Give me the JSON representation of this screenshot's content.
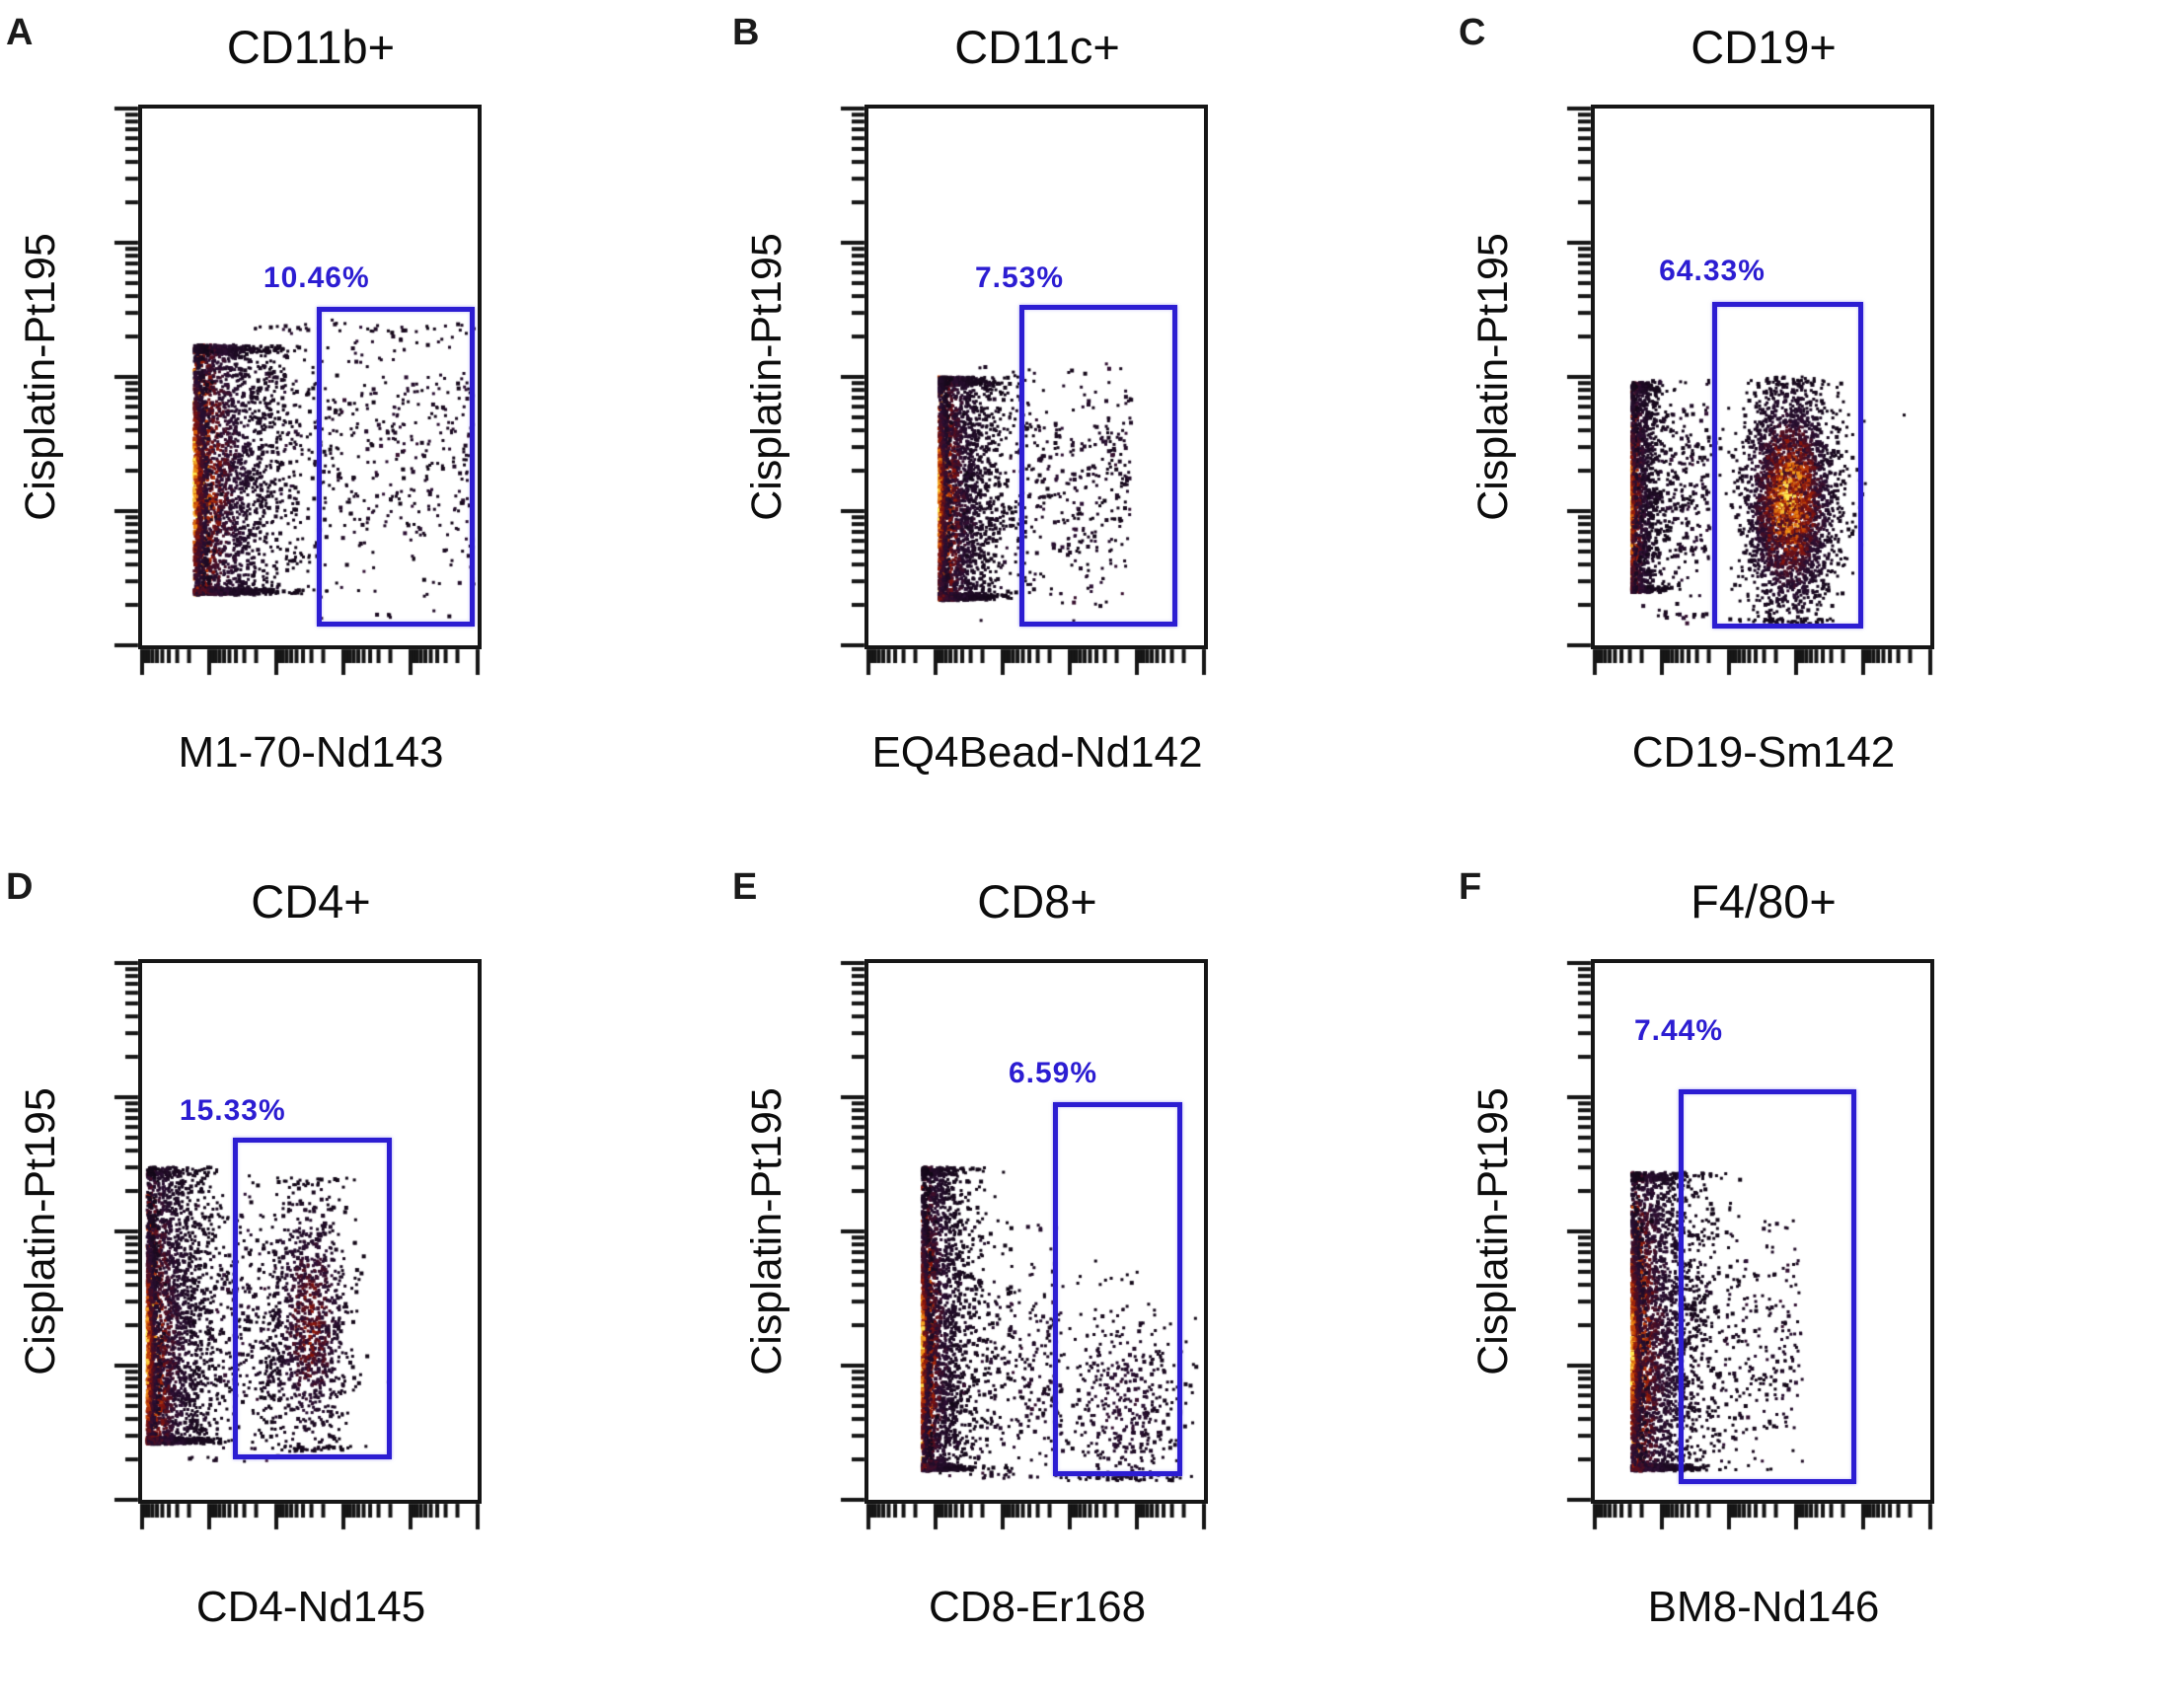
{
  "figure": {
    "background": "#ffffff",
    "accent_blue": "#2c1dd2",
    "axis_color": "#161616",
    "description": "Six-panel mass cytometry (CyTOF) pseudocolor density dot plots with rectangular positive gates"
  },
  "chart_data": {
    "type": "scatter",
    "subtype": "flow-cytometry-density",
    "x_scale": "log-like, 5 decades, minor ticks dense after each major tick",
    "y_scale": "log-like, 4 decades, minor ticks dense after each major tick",
    "grid": false,
    "legend": "none",
    "panels": [
      {
        "label": "A",
        "title": "CD11b+",
        "x_label": "M1-70-Nd143",
        "y_label": "Cisplatin-Pt195",
        "seed": 7,
        "gate": {
          "percent_label": "10.46%",
          "left": 0.52,
          "top": 0.37,
          "right": 0.99,
          "bottom": 0.965,
          "label_gap": 10
        },
        "clusters": [
          {
            "kind": "edge",
            "x0": 0.155,
            "spread_x": 0.115,
            "y_top": 0.44,
            "y_bottom": 0.905,
            "hot_y": 0.7,
            "hot_spread": 0.14,
            "heat": 1.0,
            "n": 2400,
            "baseline": true
          },
          {
            "kind": "sparse",
            "x_range": [
              0.3,
              0.99
            ],
            "y_range": [
              0.4,
              0.95
            ],
            "y_center": 0.62,
            "n": 470
          }
        ]
      },
      {
        "label": "B",
        "title": "CD11c+",
        "x_label": "EQ4Bead-Nd142",
        "y_label": "Cisplatin-Pt195",
        "seed": 23,
        "gate": {
          "percent_label": "7.53%",
          "left": 0.45,
          "top": 0.365,
          "right": 0.92,
          "bottom": 0.965,
          "label_gap": 8
        },
        "clusters": [
          {
            "kind": "edge",
            "x0": 0.21,
            "spread_x": 0.075,
            "y_top": 0.5,
            "y_bottom": 0.915,
            "hot_y": 0.73,
            "hot_spread": 0.13,
            "heat": 1.0,
            "n": 2300,
            "baseline": true
          },
          {
            "kind": "sparse",
            "x_range": [
              0.28,
              0.78
            ],
            "y_range": [
              0.48,
              0.96
            ],
            "y_center": 0.7,
            "n": 400
          }
        ]
      },
      {
        "label": "C",
        "title": "CD19+",
        "x_label": "CD19-Sm142",
        "y_label": "Cisplatin-Pt195",
        "seed": 41,
        "gate": {
          "percent_label": "64.33%",
          "left": 0.35,
          "top": 0.36,
          "right": 0.8,
          "bottom": 0.968,
          "label_gap": 12
        },
        "clusters": [
          {
            "kind": "edge",
            "x0": 0.11,
            "spread_x": 0.035,
            "y_top": 0.51,
            "y_bottom": 0.9,
            "hot_y": 0.75,
            "hot_spread": 0.13,
            "heat": 0.92,
            "n": 1300,
            "baseline": false
          },
          {
            "kind": "sparse",
            "x_range": [
              0.13,
              0.34
            ],
            "y_range": [
              0.5,
              0.95
            ],
            "y_center": 0.72,
            "n": 300
          },
          {
            "kind": "blob",
            "cx": 0.58,
            "cy": 0.73,
            "spread_x": 0.068,
            "spread_y": 0.105,
            "heat": 0.88,
            "n": 3200,
            "y_clip": [
              0.5,
              0.96
            ]
          }
        ]
      },
      {
        "label": "D",
        "title": "CD4+",
        "x_label": "CD4-Nd145",
        "y_label": "Cisplatin-Pt195",
        "seed": 59,
        "gate": {
          "percent_label": "15.33%",
          "left": 0.27,
          "top": 0.325,
          "right": 0.745,
          "bottom": 0.925,
          "label_gap": 8
        },
        "clusters": [
          {
            "kind": "edge",
            "x0": 0.015,
            "spread_x": 0.085,
            "y_top": 0.38,
            "y_bottom": 0.895,
            "hot_y": 0.73,
            "hot_spread": 0.14,
            "heat": 1.0,
            "n": 2400,
            "baseline": true
          },
          {
            "kind": "sparse",
            "x_range": [
              0.14,
              0.42
            ],
            "y_range": [
              0.42,
              0.93
            ],
            "y_center": 0.7,
            "n": 300
          },
          {
            "kind": "blob",
            "cx": 0.5,
            "cy": 0.67,
            "spread_x": 0.06,
            "spread_y": 0.13,
            "heat": 0.55,
            "n": 1100,
            "y_clip": [
              0.4,
              0.91
            ]
          }
        ]
      },
      {
        "label": "E",
        "title": "CD8+",
        "x_label": "CD8-Er168",
        "y_label": "Cisplatin-Pt195",
        "seed": 73,
        "gate": {
          "percent_label": "6.59%",
          "left": 0.55,
          "top": 0.26,
          "right": 0.935,
          "bottom": 0.955,
          "label_gap": 10
        },
        "clusters": [
          {
            "kind": "edge",
            "x0": 0.16,
            "spread_x": 0.06,
            "y_top": 0.38,
            "y_bottom": 0.945,
            "hot_y": 0.72,
            "hot_spread": 0.15,
            "heat": 1.0,
            "n": 2200,
            "baseline": true
          },
          {
            "kind": "sparse",
            "x_range": [
              0.2,
              0.58
            ],
            "y_range": [
              0.48,
              0.96
            ],
            "y_center": 0.75,
            "n": 340
          },
          {
            "kind": "blob",
            "cx": 0.76,
            "cy": 0.82,
            "spread_x": 0.09,
            "spread_y": 0.1,
            "heat": 0.32,
            "n": 460,
            "y_clip": [
              0.5,
              0.965
            ]
          }
        ]
      },
      {
        "label": "F",
        "title": "F4/80+",
        "x_label": "BM8-Nd146",
        "y_label": "Cisplatin-Pt195",
        "seed": 97,
        "gate": {
          "percent_label": "7.44%",
          "left": 0.25,
          "top": 0.235,
          "right": 0.78,
          "bottom": 0.97,
          "label_gap": 40
        },
        "clusters": [
          {
            "kind": "edge",
            "x0": 0.11,
            "spread_x": 0.095,
            "y_top": 0.39,
            "y_bottom": 0.945,
            "hot_y": 0.72,
            "hot_spread": 0.15,
            "heat": 1.0,
            "n": 2600,
            "baseline": true
          },
          {
            "kind": "sparse",
            "x_range": [
              0.26,
              0.62
            ],
            "y_range": [
              0.48,
              0.93
            ],
            "y_center": 0.72,
            "n": 240
          }
        ]
      }
    ]
  }
}
